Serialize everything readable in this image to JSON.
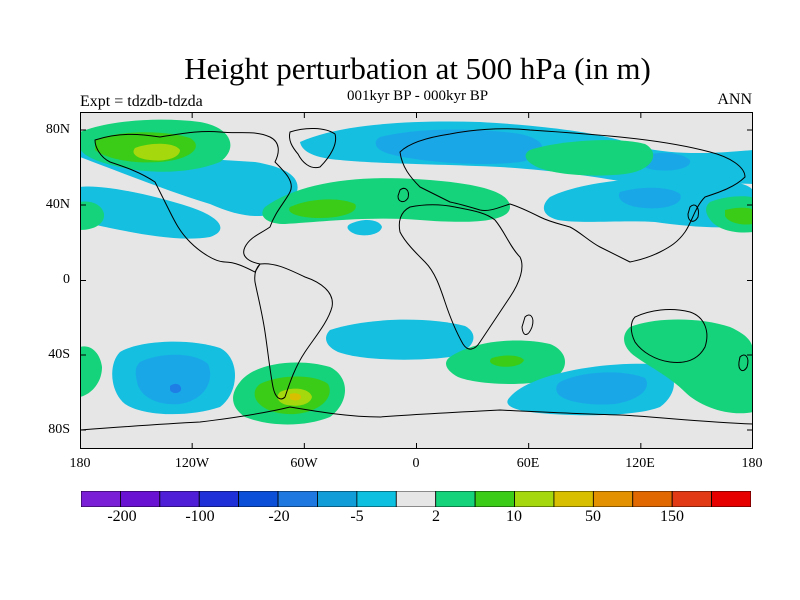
{
  "title": "Height perturbation at 500 hPa (in m)",
  "subtitle": "001kyr BP - 000kyr BP",
  "left_label": "Expt = tdzdb-tdzda",
  "right_label": "ANN",
  "lat_ticks": [
    "80N",
    "40N",
    "0",
    "40S",
    "80S"
  ],
  "lon_ticks": [
    "180",
    "120W",
    "60W",
    "0",
    "60E",
    "120E",
    "180"
  ],
  "colorbar": {
    "colors": [
      "#7a1fd6",
      "#6a12d2",
      "#4f1fd8",
      "#2030d8",
      "#0b4fd8",
      "#1f78e0",
      "#119ed8",
      "#0ec0e0",
      "#e6e6e6",
      "#14d37a",
      "#3acc17",
      "#a5d80d",
      "#d8bf00",
      "#e39100",
      "#e16800",
      "#e13a14",
      "#e60000"
    ],
    "labels": [
      "-200",
      "-100",
      "-20",
      "-5",
      "2",
      "10",
      "50",
      "150"
    ]
  },
  "colors": {
    "background": "#e6e6e6",
    "neg_light": "#14bfe0",
    "neg_mid": "#1aa7e8",
    "neg_dark": "#1f7ee6",
    "pos_light": "#14d37a",
    "pos_mid": "#3acc17",
    "pos_yellow": "#a5d80d",
    "pos_orange": "#d8bf00"
  }
}
